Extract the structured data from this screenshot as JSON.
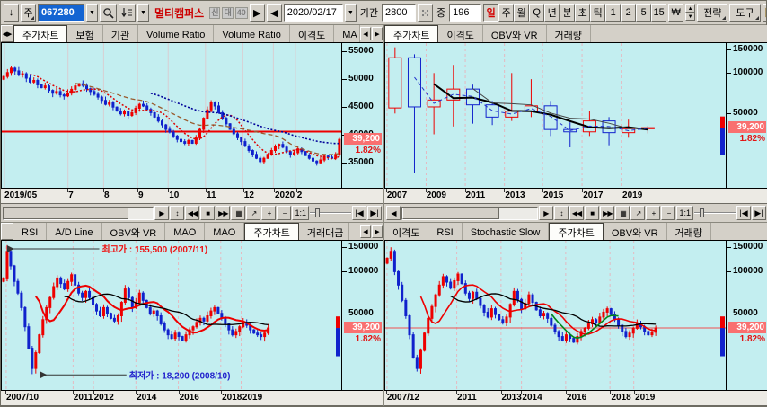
{
  "colors": {
    "chart_bg": "#c3eef0",
    "up": "#ee0000",
    "down": "#1122cc",
    "price_tag_bg": "#f97070",
    "price_change": "#e31212",
    "toolbar_bg": "#d4d0c8"
  },
  "toolbar": {
    "down_glyph": "↓",
    "week_btn": "주",
    "code_value": "067280",
    "stock_name": "멀티캠퍼스",
    "badges": [
      "신",
      "대",
      "40"
    ],
    "next_glyph": "▶",
    "prev_glyph": "◀",
    "date_value": "2020/02/17",
    "period_label": "기간",
    "period_value": "2800",
    "count_label": "중",
    "count_value": "196",
    "interval_buttons": [
      "일",
      "주",
      "월",
      "Q",
      "년",
      "분",
      "초",
      "틱",
      "1",
      "2",
      "5",
      "15"
    ],
    "active_interval": "일",
    "won_btn": "₩",
    "strategy_btn": "전략",
    "tools_btn": "도구",
    "dropdown_glyph": "▼"
  },
  "chart_nav": {
    "buttons": [
      {
        "name": "fit-vertical",
        "glyph": "↕"
      },
      {
        "name": "rewind",
        "glyph": "◀◀"
      },
      {
        "name": "stop",
        "glyph": "■"
      },
      {
        "name": "fast-forward",
        "glyph": "▶▶"
      },
      {
        "name": "chart-settings",
        "glyph": "▦"
      },
      {
        "name": "trend-line-tool",
        "glyph": "↗"
      },
      {
        "name": "zoom-in",
        "glyph": "+"
      },
      {
        "name": "zoom-out",
        "glyph": "−"
      },
      {
        "name": "one-to-one",
        "glyph": "1:1"
      }
    ],
    "first_glyph": "|◀",
    "last_glyph": "▶|",
    "scroll_right_glyph": "▶",
    "scroll_left_glyph": "◀"
  },
  "panels": {
    "top_left": {
      "tabs": {
        "lead_icon": "◀▶",
        "scroll_arrows": true,
        "items": [
          {
            "label": "주가차트",
            "active": true
          },
          {
            "label": "보험"
          },
          {
            "label": "기관"
          },
          {
            "label": "Volume Ratio"
          },
          {
            "label": "Volume Ratio"
          },
          {
            "label": "이격도"
          },
          {
            "label": "MA",
            "cut": true
          }
        ]
      },
      "price_label": "39,200",
      "change_label": "1.82%",
      "nav": {
        "left_arrow": false,
        "thumb": [
          0.0,
          0.84
        ]
      },
      "chart_data": {
        "type": "candlestick",
        "scale": "linear",
        "y_min": 30500,
        "y_max": 56500,
        "y_ticks": [
          55000,
          50000,
          45000,
          40000,
          35000
        ],
        "x_ticks": [
          {
            "label": "2019/05",
            "pos": 0.008
          },
          {
            "label": "7",
            "pos": 0.195
          },
          {
            "label": "8",
            "pos": 0.3
          },
          {
            "label": "9",
            "pos": 0.4
          },
          {
            "label": "10",
            "pos": 0.49
          },
          {
            "label": "11",
            "pos": 0.6
          },
          {
            "label": "12",
            "pos": 0.71
          },
          {
            "label": "2020",
            "pos": 0.8
          },
          {
            "label": "2",
            "pos": 0.865
          }
        ],
        "grid": {
          "color": "#d9ced2",
          "dash": null
        },
        "span": 1.0,
        "candle_style": "solid",
        "wick_pct": 0.012,
        "first_open": 50000,
        "closes": [
          50500,
          51200,
          52000,
          51500,
          50800,
          51000,
          50200,
          49500,
          49800,
          49000,
          48500,
          48800,
          48000,
          47500,
          47800,
          47200,
          47000,
          47500,
          48200,
          48800,
          49200,
          48900,
          48300,
          47800,
          47300,
          46800,
          46200,
          45500,
          45800,
          45000,
          44300,
          43800,
          44200,
          43500,
          44000,
          44800,
          45500,
          45200,
          44600,
          44000,
          43200,
          42500,
          41800,
          41000,
          40500,
          39800,
          39200,
          38800,
          38500,
          39000,
          38500,
          39500,
          41000,
          43000,
          44500,
          45800,
          45200,
          44000,
          43000,
          42000,
          41000,
          40200,
          39500,
          38800,
          38000,
          37200,
          36500,
          35800,
          35200,
          35800,
          36500,
          37200,
          38000,
          38300,
          37800,
          37000,
          36400,
          36800,
          37500,
          37000,
          36300,
          35800,
          35300,
          35000,
          35500,
          36200,
          36000,
          35800,
          36500,
          39200
        ],
        "ma": [
          {
            "window": 8,
            "color": "#dd0000",
            "dash": "2,2",
            "width": 1.5
          },
          {
            "window": 20,
            "color": "#9a5b2e",
            "dash": "5,3",
            "width": 1.3
          },
          {
            "window": 40,
            "color": "#000099",
            "dash": "2,2",
            "width": 1.6
          }
        ],
        "hlines": [
          {
            "value": 40600,
            "color": "#ee0000",
            "width": 2
          }
        ],
        "price_line": 39200
      }
    },
    "top_right": {
      "tabs": {
        "items": [
          {
            "label": "주가차트",
            "active": true
          },
          {
            "label": "이격도"
          },
          {
            "label": "OBV와 VR"
          },
          {
            "label": "거래량"
          }
        ]
      },
      "price_label": "39,200",
      "change_label": "1.82%",
      "nav": {
        "left_arrow": true,
        "thumb": [
          0.0,
          0.72
        ]
      },
      "chart_data": {
        "type": "candlestick",
        "scale": "log",
        "y_min": 14000,
        "y_max": 167000,
        "y_ticks": [
          150000,
          100000,
          50000
        ],
        "x_ticks": [
          {
            "label": "2007",
            "pos": 0.005
          },
          {
            "label": "2009",
            "pos": 0.12
          },
          {
            "label": "2011",
            "pos": 0.235
          },
          {
            "label": "2013",
            "pos": 0.35
          },
          {
            "label": "2015",
            "pos": 0.462
          },
          {
            "label": "2017",
            "pos": 0.578
          },
          {
            "label": "2019",
            "pos": 0.693
          }
        ],
        "grid": {
          "color": "#e5b9c0",
          "dash": "3,3"
        },
        "span": 0.8,
        "candle_style": "hollow",
        "ohlc": [
          [
            55000,
            155500,
            50000,
            130000
          ],
          [
            130000,
            138000,
            18200,
            56000
          ],
          [
            56000,
            100000,
            35000,
            63000
          ],
          [
            63000,
            115000,
            40000,
            76000
          ],
          [
            76000,
            82000,
            42000,
            58000
          ],
          [
            58000,
            62000,
            41000,
            47000
          ],
          [
            47000,
            100000,
            44000,
            52000
          ],
          [
            52000,
            90000,
            47000,
            57000
          ],
          [
            57000,
            62000,
            34000,
            38000
          ],
          [
            38000,
            43000,
            28000,
            36500
          ],
          [
            36500,
            52000,
            34000,
            44000
          ],
          [
            44000,
            47000,
            29000,
            36000
          ],
          [
            36000,
            45000,
            33000,
            38500
          ],
          [
            38500,
            40500,
            35500,
            39200
          ]
        ],
        "ma": [
          {
            "window": 3,
            "color": "#000000",
            "width": 2
          },
          {
            "window": 5,
            "color": "#444444",
            "width": 1
          },
          {
            "window": 2,
            "color": "#2233cc",
            "dash": "4,3",
            "width": 1
          }
        ],
        "edge_bar": {
          "red": [
            47500,
            39200
          ],
          "blue": [
            39200,
            24500
          ]
        },
        "price_line": 39200
      }
    },
    "bottom_left": {
      "tabs": {
        "lead_icon": " ",
        "scroll_arrows": true,
        "items": [
          {
            "label": "RSI"
          },
          {
            "label": "A/D Line"
          },
          {
            "label": "OBV와 VR"
          },
          {
            "label": "MAO"
          },
          {
            "label": "MAO"
          },
          {
            "label": "주가차트",
            "active": true
          },
          {
            "label": "거래대금",
            "cut": true
          }
        ]
      },
      "price_label": "39,200",
      "change_label": "1.82%",
      "chart_data": {
        "type": "candlestick",
        "scale": "log",
        "y_min": 14000,
        "y_max": 167000,
        "y_ticks": [
          150000,
          100000,
          50000
        ],
        "x_ticks": [
          {
            "label": "2007/10",
            "pos": 0.013
          },
          {
            "label": "2011",
            "pos": 0.21
          },
          {
            "label": "2012",
            "pos": 0.27
          },
          {
            "label": "2014",
            "pos": 0.395
          },
          {
            "label": "2016",
            "pos": 0.52
          },
          {
            "label": "2018",
            "pos": 0.645
          },
          {
            "label": "2019",
            "pos": 0.705
          }
        ],
        "grid": {
          "color": "#e5b9c0",
          "dash": "3,3"
        },
        "span": 0.79,
        "candle_style": "solid",
        "wick_pct": 0.06,
        "first_open": 85000,
        "closes": [
          90000,
          140000,
          110000,
          85000,
          70000,
          55000,
          40000,
          28000,
          20000,
          26000,
          35000,
          45000,
          55000,
          65000,
          78000,
          90000,
          82000,
          75000,
          85000,
          95000,
          80000,
          70000,
          65000,
          72000,
          65000,
          58000,
          52000,
          48000,
          55000,
          50000,
          46000,
          44000,
          48000,
          60000,
          75000,
          65000,
          55000,
          60000,
          70000,
          62000,
          55000,
          50000,
          52000,
          48000,
          42000,
          38000,
          35000,
          33000,
          36000,
          34000,
          32000,
          35000,
          38000,
          40000,
          43000,
          46000,
          44000,
          48000,
          52000,
          55000,
          50000,
          46000,
          42000,
          38000,
          35000,
          37000,
          40000,
          43000,
          41000,
          38000,
          36000,
          35000,
          34000,
          36000,
          39200
        ],
        "high_override": {
          "1": 155500
        },
        "low_override": {
          "8": 18200
        },
        "ma": [
          {
            "window": 10,
            "color": "#ee0000",
            "width": 2
          },
          {
            "window": 18,
            "color": "#000000",
            "width": 1.3
          }
        ],
        "annotations": [
          {
            "text": "최고가 : 155,500 (2007/11)",
            "color": "#ee1111",
            "tx": 0.295,
            "ty": 0.03,
            "ax": 0.018
          },
          {
            "text": "최저가 : 18,200 (2008/10)",
            "color": "#2222cc",
            "tx": 0.375,
            "ty": 0.875,
            "ax": 0.115
          }
        ],
        "edge_bar": {
          "red": [
            47500,
            39200
          ],
          "blue": [
            39200,
            24500
          ]
        },
        "price_line": 39200
      }
    },
    "bottom_right": {
      "tabs": {
        "items": [
          {
            "label": "이격도"
          },
          {
            "label": "RSI"
          },
          {
            "label": "Stochastic Slow"
          },
          {
            "label": "주가차트",
            "active": true
          },
          {
            "label": "OBV와 VR"
          },
          {
            "label": "거래량"
          }
        ]
      },
      "price_label": "39,200",
      "change_label": "1.82%",
      "chart_data": {
        "type": "candlestick",
        "scale": "log",
        "y_min": 14000,
        "y_max": 167000,
        "y_ticks": [
          150000,
          100000,
          50000
        ],
        "x_ticks": [
          {
            "label": "2007/12",
            "pos": 0.005
          },
          {
            "label": "2011",
            "pos": 0.21
          },
          {
            "label": "2013",
            "pos": 0.34
          },
          {
            "label": "2014",
            "pos": 0.4
          },
          {
            "label": "2016",
            "pos": 0.53
          },
          {
            "label": "2018",
            "pos": 0.66
          },
          {
            "label": "2019",
            "pos": 0.73
          }
        ],
        "grid": {
          "color": "#e5b9c0",
          "dash": "3,3"
        },
        "span": 0.8,
        "candle_style": "solid",
        "wick_pct": 0.06,
        "first_open": 115000,
        "closes": [
          125000,
          140000,
          100000,
          80000,
          62000,
          48000,
          35000,
          24000,
          20000,
          27000,
          36000,
          46000,
          56000,
          68000,
          80000,
          92000,
          84000,
          76000,
          86000,
          96000,
          82000,
          70000,
          64000,
          71000,
          64000,
          57000,
          51000,
          47000,
          54000,
          49000,
          45000,
          43000,
          47000,
          58000,
          72000,
          63000,
          54000,
          59000,
          68000,
          60000,
          53000,
          48000,
          50000,
          46000,
          41000,
          37000,
          34000,
          32000,
          35000,
          33000,
          31000,
          34000,
          37000,
          39000,
          42000,
          45000,
          43000,
          47000,
          51000,
          54000,
          49000,
          45000,
          41000,
          37000,
          34000,
          36000,
          39000,
          42000,
          40000,
          37000,
          35000,
          36500,
          39200
        ],
        "high_override": {
          "1": 150000
        },
        "low_override": {
          "8": 19000
        },
        "ma": [
          {
            "window": 10,
            "color": "#ee0000",
            "width": 1.6
          },
          {
            "window": 18,
            "color": "#000000",
            "width": 1.3
          },
          {
            "window": 6,
            "color": "#00881a",
            "width": 1.6,
            "from": 44,
            "to": 62
          }
        ],
        "hlines": [
          {
            "value": 39200,
            "color": "#f05050",
            "width": 1
          }
        ],
        "edge_bar": {
          "red": [
            47500,
            39200
          ],
          "blue": [
            39200,
            24500
          ]
        },
        "price_line": 39200
      }
    }
  }
}
